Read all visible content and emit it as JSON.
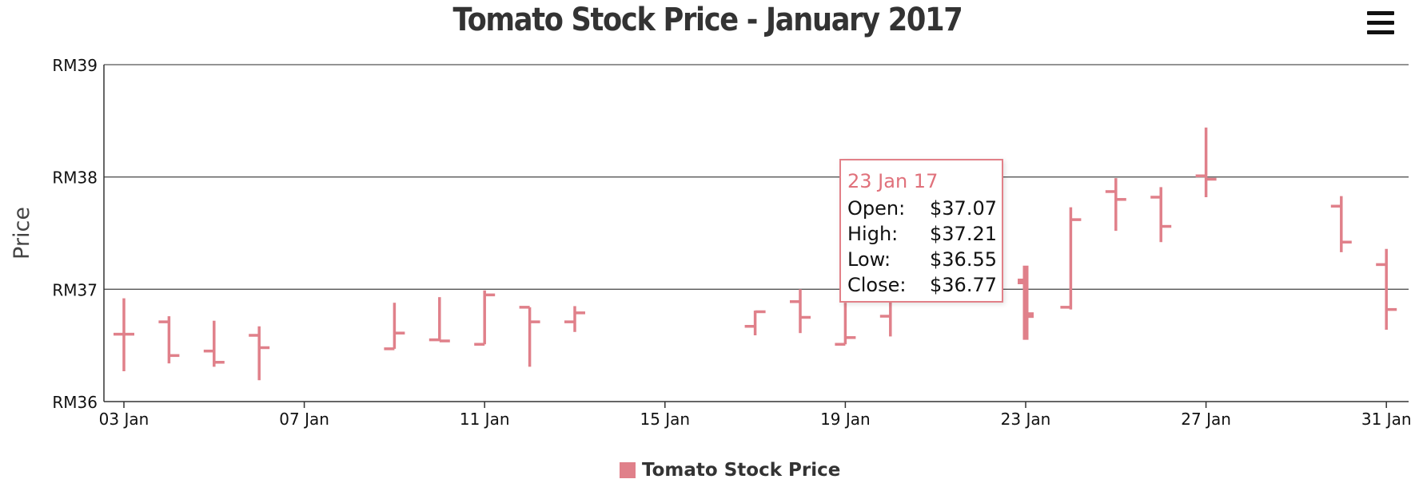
{
  "chart_data": {
    "type": "ohlc",
    "title": "Tomato Stock Price - January 2017",
    "ylabel": "Price",
    "ylim": [
      36,
      39
    ],
    "y_ticks": [
      36,
      37,
      38,
      39
    ],
    "y_tick_prefix": "RM",
    "x_range": [
      "2017-01-03",
      "2017-01-31"
    ],
    "x_ticks": [
      {
        "date": "2017-01-03",
        "label": "03 Jan"
      },
      {
        "date": "2017-01-07",
        "label": "07 Jan"
      },
      {
        "date": "2017-01-11",
        "label": "11 Jan"
      },
      {
        "date": "2017-01-15",
        "label": "15 Jan"
      },
      {
        "date": "2017-01-19",
        "label": "19 Jan"
      },
      {
        "date": "2017-01-23",
        "label": "23 Jan"
      },
      {
        "date": "2017-01-27",
        "label": "27 Jan"
      },
      {
        "date": "2017-01-31",
        "label": "31 Jan"
      }
    ],
    "grid": true,
    "legend": {
      "position": "bottom-center",
      "entries": [
        "Tomato Stock Price"
      ]
    },
    "series": [
      {
        "name": "Tomato Stock Price",
        "color": "#e0808a",
        "points": [
          {
            "date": "2017-01-03",
            "open": 36.6,
            "high": 36.92,
            "low": 36.27,
            "close": 36.6
          },
          {
            "date": "2017-01-04",
            "open": 36.71,
            "high": 36.76,
            "low": 36.34,
            "close": 36.41
          },
          {
            "date": "2017-01-05",
            "open": 36.45,
            "high": 36.72,
            "low": 36.31,
            "close": 36.35
          },
          {
            "date": "2017-01-06",
            "open": 36.59,
            "high": 36.67,
            "low": 36.19,
            "close": 36.48
          },
          {
            "date": "2017-01-09",
            "open": 36.47,
            "high": 36.88,
            "low": 36.47,
            "close": 36.61
          },
          {
            "date": "2017-01-10",
            "open": 36.55,
            "high": 36.93,
            "low": 36.54,
            "close": 36.54
          },
          {
            "date": "2017-01-11",
            "open": 36.51,
            "high": 36.99,
            "low": 36.51,
            "close": 36.95
          },
          {
            "date": "2017-01-12",
            "open": 36.84,
            "high": 36.84,
            "low": 36.31,
            "close": 36.71
          },
          {
            "date": "2017-01-13",
            "open": 36.71,
            "high": 36.85,
            "low": 36.62,
            "close": 36.79
          },
          {
            "date": "2017-01-17",
            "open": 36.67,
            "high": 36.81,
            "low": 36.59,
            "close": 36.8
          },
          {
            "date": "2017-01-18",
            "open": 36.89,
            "high": 37.0,
            "low": 36.61,
            "close": 36.75
          },
          {
            "date": "2017-01-19",
            "open": 36.51,
            "high": 36.88,
            "low": 36.51,
            "close": 36.57
          },
          {
            "date": "2017-01-20",
            "open": 36.76,
            "high": 37.02,
            "low": 36.58,
            "close": 36.98
          },
          {
            "date": "2017-01-23",
            "open": 37.07,
            "high": 37.21,
            "low": 36.55,
            "close": 36.77
          },
          {
            "date": "2017-01-24",
            "open": 36.84,
            "high": 37.73,
            "low": 36.82,
            "close": 37.62
          },
          {
            "date": "2017-01-25",
            "open": 37.87,
            "high": 37.99,
            "low": 37.52,
            "close": 37.8
          },
          {
            "date": "2017-01-26",
            "open": 37.82,
            "high": 37.91,
            "low": 37.42,
            "close": 37.56
          },
          {
            "date": "2017-01-27",
            "open": 38.01,
            "high": 38.44,
            "low": 37.82,
            "close": 37.98
          },
          {
            "date": "2017-01-30",
            "open": 37.74,
            "high": 37.83,
            "low": 37.33,
            "close": 37.42
          },
          {
            "date": "2017-01-31",
            "open": 37.22,
            "high": 37.36,
            "low": 36.64,
            "close": 36.82
          }
        ]
      }
    ],
    "tooltip": {
      "date": "23 Jan 17",
      "rows": [
        {
          "label": "Open:",
          "value": "$37.07"
        },
        {
          "label": "High:",
          "value": "$37.21"
        },
        {
          "label": "Low:",
          "value": "$36.55"
        },
        {
          "label": "Close:",
          "value": "$36.77"
        }
      ]
    }
  }
}
